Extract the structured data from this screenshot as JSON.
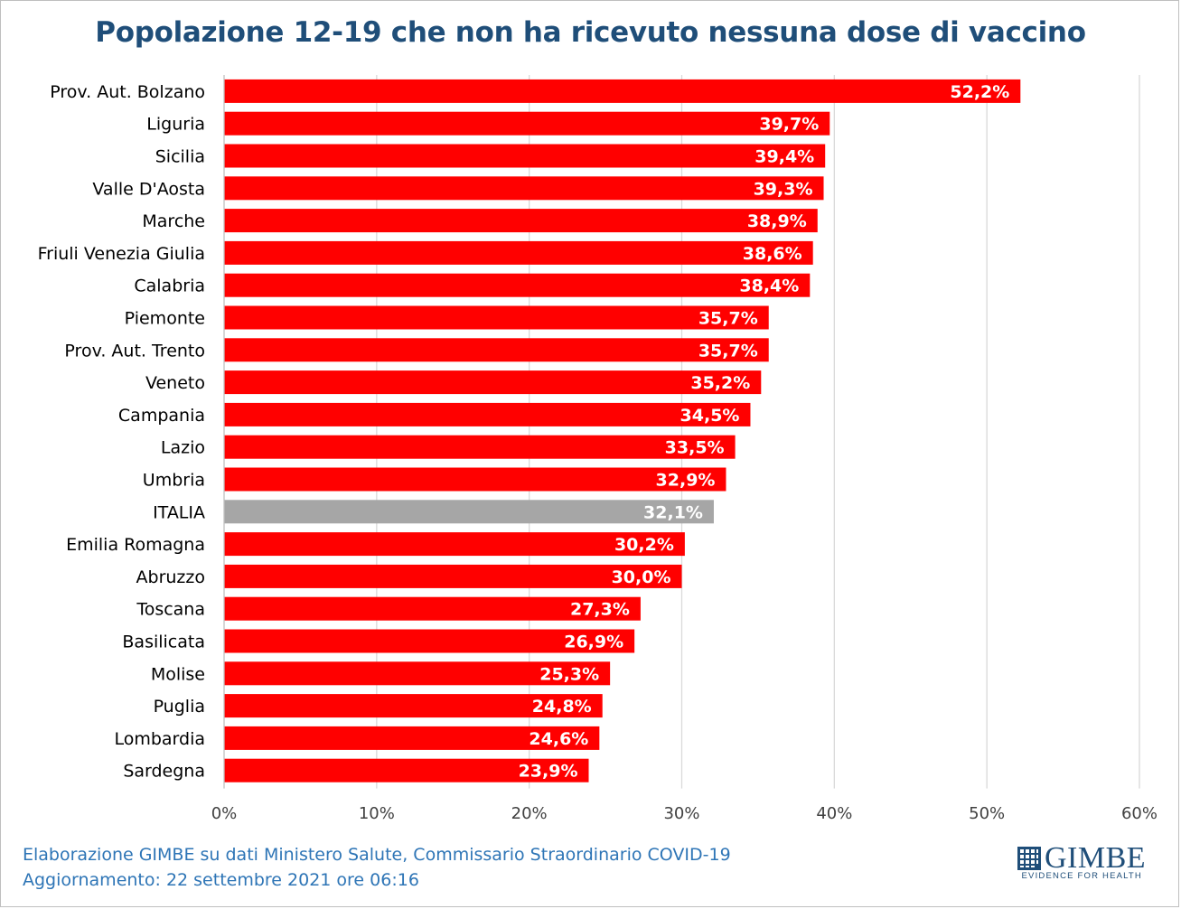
{
  "chart_data": {
    "type": "bar",
    "orientation": "horizontal",
    "title": "Popolazione 12-19 che non ha ricevuto nessuna dose di vaccino",
    "xlabel": "",
    "ylabel": "",
    "xlim": [
      0,
      60
    ],
    "x_ticks": [
      "0%",
      "10%",
      "20%",
      "30%",
      "40%",
      "50%",
      "60%"
    ],
    "grid": "vertical",
    "legend": "none",
    "categories": [
      "Prov. Aut. Bolzano",
      "Liguria",
      "Sicilia",
      "Valle D'Aosta",
      "Marche",
      "Friuli Venezia Giulia",
      "Calabria",
      "Piemonte",
      "Prov. Aut. Trento",
      "Veneto",
      "Campania",
      "Lazio",
      "Umbria",
      "ITALIA",
      "Emilia Romagna",
      "Abruzzo",
      "Toscana",
      "Basilicata",
      "Molise",
      "Puglia",
      "Lombardia",
      "Sardegna"
    ],
    "values": [
      52.2,
      39.7,
      39.4,
      39.3,
      38.9,
      38.6,
      38.4,
      35.7,
      35.7,
      35.2,
      34.5,
      33.5,
      32.9,
      32.1,
      30.2,
      30.0,
      27.3,
      26.9,
      25.3,
      24.8,
      24.6,
      23.9
    ],
    "data_labels": [
      "52,2%",
      "39,7%",
      "39,4%",
      "39,3%",
      "38,9%",
      "38,6%",
      "38,4%",
      "35,7%",
      "35,7%",
      "35,2%",
      "34,5%",
      "33,5%",
      "32,9%",
      "32,1%",
      "30,2%",
      "30,0%",
      "27,3%",
      "26,9%",
      "25,3%",
      "24,8%",
      "24,6%",
      "23,9%"
    ],
    "bar_color": "#ff0000",
    "highlight_category": "ITALIA",
    "highlight_color": "#a6a6a6",
    "label_color": "#ffffff",
    "grid_color": "#d9d9d9"
  },
  "footer": {
    "line1": "Elaborazione GIMBE su dati Ministero Salute, Commissario Straordinario COVID-19",
    "line2": "Aggiornamento: 22 settembre 2021 ore 06:16"
  },
  "logo": {
    "icon": "gimbe-grid-icon",
    "name": "GIMBE",
    "tagline": "EVIDENCE FOR HEALTH"
  }
}
